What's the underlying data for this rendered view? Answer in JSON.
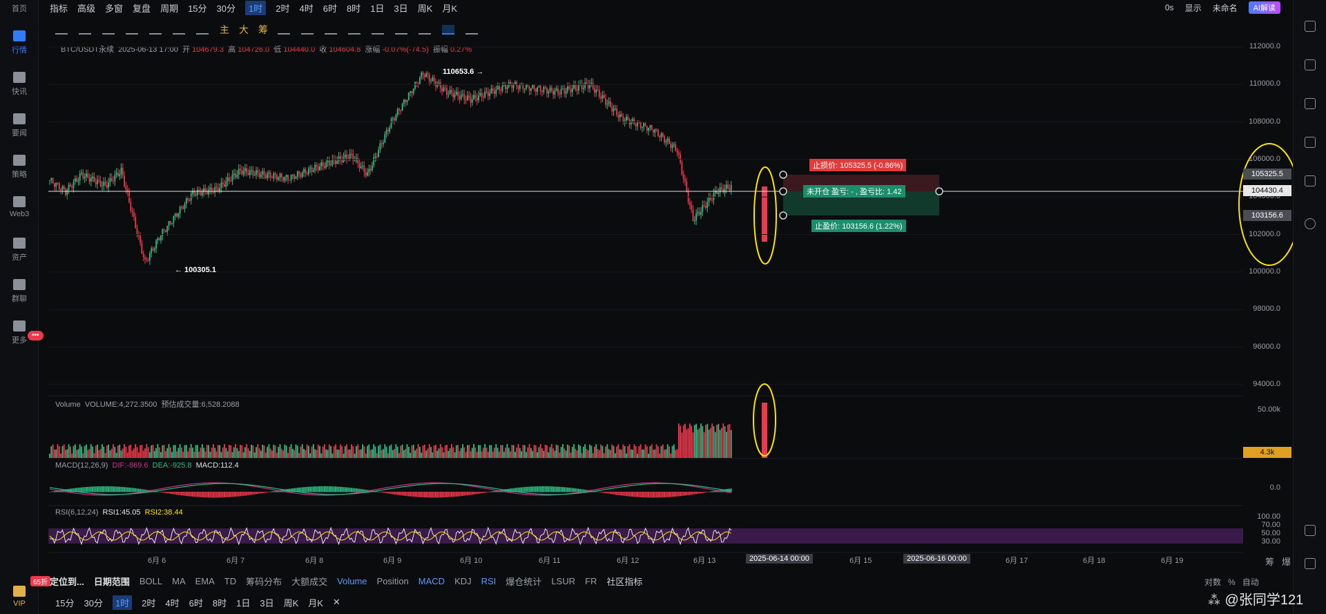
{
  "left_nav": {
    "items": [
      {
        "label": "首页"
      },
      {
        "label": "行情"
      },
      {
        "label": "快讯"
      },
      {
        "label": "要闻"
      },
      {
        "label": "策略"
      },
      {
        "label": "Web3"
      },
      {
        "label": "资产"
      },
      {
        "label": "群聊"
      },
      {
        "label": "更多"
      }
    ],
    "chat_badge": "•••",
    "vip_label": "VIP",
    "vip_badge": "65折"
  },
  "topbar": {
    "items": [
      "指标",
      "高级",
      "多窗",
      "复盘",
      "周期",
      "15分",
      "30分",
      "1时",
      "2时",
      "4时",
      "6时",
      "8时",
      "1日",
      "3日",
      "周K",
      "月K"
    ],
    "selected": "1时",
    "right": {
      "timer": "0s",
      "display": "显示",
      "account": "未命名",
      "ai": "AI解读"
    }
  },
  "toolbar": {
    "text_tools": [
      "主",
      "大",
      "筹"
    ]
  },
  "ohlc": {
    "symbol": "BTC/USDT永续",
    "time": "2025-06-13 17:00",
    "open_label": "开",
    "open": "104679.3",
    "high_label": "高",
    "high": "104726.0",
    "low_label": "低",
    "low": "104440.0",
    "close_label": "收",
    "close": "104604.8",
    "chg_label": "涨幅",
    "chg": "-0.07%(-74.5)",
    "amp_label": "振幅",
    "amp": "0.27%"
  },
  "annotations": {
    "high": "110653.6 →",
    "low": "← 100305.1"
  },
  "position": {
    "stop_loss": "止损价: 105325.5 (-0.86%)",
    "status": "未开仓  盈亏: - , 盈亏比: 1.42",
    "take_profit": "止盈价: 103156.6 (1.22%)"
  },
  "price_axis": [
    "112000.0",
    "110000.0",
    "108000.0",
    "106000.0",
    "104000.0",
    "102000.0",
    "100000.0",
    "98000.0",
    "96000.0",
    "94000.0"
  ],
  "price_tags": {
    "stop": "105325.5",
    "current": "104430.4",
    "take": "103156.6"
  },
  "volume": {
    "label": "Volume",
    "value": "VOLUME:4,272.3500",
    "est": "预估成交量:6,528.2088",
    "axis": "50.00k",
    "tag": "4.3k"
  },
  "macd": {
    "label": "MACD(12,26,9)",
    "dif": "DIF:-869.6",
    "dea": "DEA:-925.8",
    "macd": "MACD:112.4",
    "axis": "0.0"
  },
  "rsi": {
    "label": "RSI(6,12,24)",
    "rsi1": "RSI1:45.05",
    "rsi2": "RSI2:38.44",
    "axis": [
      "100.00",
      "70.00",
      "50.00",
      "30.00"
    ]
  },
  "dates": [
    "6月 6",
    "6月 7",
    "6月 8",
    "6月 9",
    "6月 10",
    "6月 11",
    "6月 12",
    "6月 13",
    "6月 15",
    "6月 17",
    "6月 18",
    "6月 19"
  ],
  "date_tags": [
    "2025-06-14 00:00",
    "2025-06-16 00:00"
  ],
  "date_right": [
    "筹",
    "爆"
  ],
  "bottom": {
    "locate": "定位到...",
    "range": "日期范围",
    "indicators": [
      "BOLL",
      "MA",
      "EMA",
      "TD",
      "筹码分布",
      "大额成交"
    ],
    "sub_indicators": [
      "Volume",
      "Position",
      "MACD",
      "KDJ",
      "RSI",
      "爆仓统计",
      "LSUR",
      "FR"
    ],
    "community": "社区指标",
    "right": [
      "对数",
      "%",
      "自动"
    ]
  },
  "bottom2": {
    "items": [
      "15分",
      "30分",
      "1时",
      "2时",
      "4时",
      "6时",
      "8时",
      "1日",
      "3日",
      "周K",
      "月K"
    ],
    "selected": "1时",
    "close": "✕"
  },
  "watermark": "⁂ @张同学121",
  "colors": {
    "up": "#2ebd85",
    "down": "#f0384c",
    "accent": "#2f7cf6",
    "highlight": "#ffe500"
  }
}
